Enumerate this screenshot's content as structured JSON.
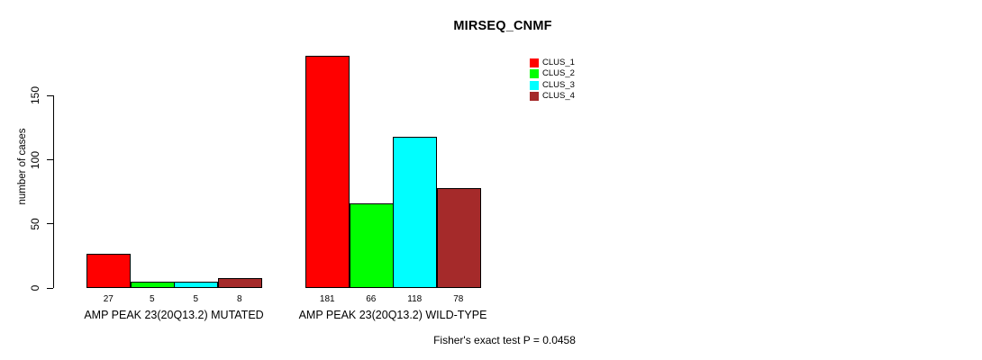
{
  "chart_data": {
    "type": "bar",
    "title": "MIRSEQ_CNMF",
    "ylabel": "number of cases",
    "xlabel": "",
    "categories": [
      "AMP PEAK 23(20Q13.2) MUTATED",
      "AMP PEAK 23(20Q13.2) WILD-TYPE"
    ],
    "series": [
      {
        "name": "CLUS_1",
        "color": "#FF0000",
        "values": [
          27,
          181
        ]
      },
      {
        "name": "CLUS_2",
        "color": "#00FF00",
        "values": [
          5,
          66
        ]
      },
      {
        "name": "CLUS_3",
        "color": "#00FFFF",
        "values": [
          5,
          118
        ]
      },
      {
        "name": "CLUS_4",
        "color": "#A52A2A",
        "values": [
          8,
          78
        ]
      }
    ],
    "bar_value_labels": [
      [
        "27",
        "5",
        "5",
        "8"
      ],
      [
        "181",
        "66",
        "118",
        "78"
      ]
    ],
    "yticks": [
      "0",
      "50",
      "100",
      "150"
    ],
    "ytick_values": [
      0,
      50,
      100,
      150
    ],
    "ylim": [
      0,
      185
    ],
    "grid": false,
    "legend_position": "top-right",
    "annotation": "Fisher's exact test P = 0.0458"
  }
}
